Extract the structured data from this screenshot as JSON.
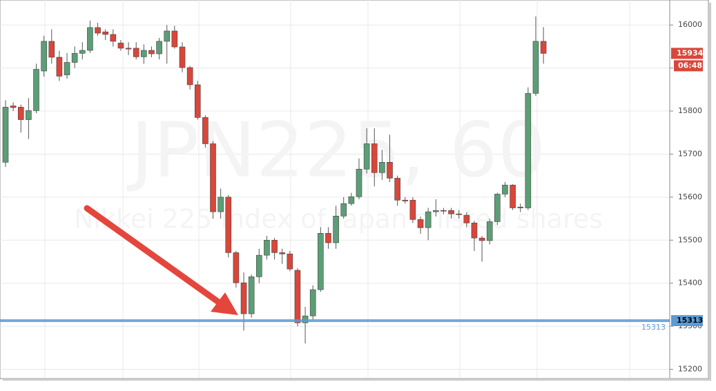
{
  "chart_data": {
    "type": "candlestick",
    "title": "JPN225, 60",
    "subtitle": "Nikkei 225 index of Japan's listed shares",
    "open": [
      15681,
      15812,
      15809,
      15780,
      15801,
      15893,
      15962,
      15925,
      15884,
      15913,
      15934,
      15941,
      15994,
      15984,
      15978,
      15958,
      15946,
      15946,
      15926,
      15941,
      15933,
      15962,
      15986,
      15949,
      15901,
      15861,
      15785,
      15724,
      15566,
      15600,
      15471,
      15401,
      15329,
      15415,
      15465,
      15500,
      15471,
      15468,
      15430,
      15308,
      15324,
      15385,
      15516,
      15494,
      15556,
      15585,
      15601,
      15665,
      15724,
      15657,
      15681,
      15644,
      15593,
      15593,
      15548,
      15529,
      15566,
      15569,
      15569,
      15561,
      15558,
      15540,
      15505,
      15499,
      15543,
      15607,
      15628,
      15577,
      15575,
      15841,
      15962
    ],
    "high": [
      15825,
      15820,
      15815,
      15830,
      15910,
      15975,
      15990,
      15940,
      15935,
      15950,
      15960,
      16010,
      16005,
      15990,
      15990,
      15965,
      15960,
      15960,
      15955,
      15950,
      15970,
      16000,
      15998,
      15960,
      15905,
      15870,
      15790,
      15730,
      15620,
      15605,
      15475,
      15425,
      15420,
      15480,
      15510,
      15505,
      15480,
      15475,
      15435,
      15345,
      15395,
      15530,
      15530,
      15580,
      15600,
      15610,
      15690,
      15760,
      15760,
      15710,
      15745,
      15650,
      15600,
      15600,
      15555,
      15575,
      15595,
      15575,
      15575,
      15570,
      15565,
      15545,
      15510,
      15550,
      15610,
      15635,
      15630,
      15585,
      15855,
      16020,
      15995
    ],
    "low": [
      15670,
      15800,
      15750,
      15735,
      15795,
      15880,
      15910,
      15870,
      15875,
      15900,
      15920,
      15935,
      15975,
      15965,
      15950,
      15940,
      15930,
      15920,
      15910,
      15925,
      15920,
      15910,
      15945,
      15890,
      15850,
      15780,
      15715,
      15550,
      15550,
      15460,
      15390,
      15290,
      15320,
      15400,
      15455,
      15455,
      15445,
      15428,
      15300,
      15260,
      15315,
      15380,
      15480,
      15480,
      15550,
      15580,
      15595,
      15655,
      15625,
      15640,
      15635,
      15580,
      15585,
      15540,
      15515,
      15500,
      15555,
      15560,
      15550,
      15550,
      15530,
      15475,
      15450,
      15490,
      15535,
      15600,
      15570,
      15565,
      15570,
      15835,
      15910
    ],
    "close": [
      15809,
      15808,
      15780,
      15801,
      15897,
      15962,
      15925,
      15881,
      15913,
      15934,
      15941,
      15994,
      15981,
      15978,
      15962,
      15946,
      15944,
      15926,
      15941,
      15933,
      15962,
      15986,
      15949,
      15901,
      15861,
      15785,
      15724,
      15566,
      15600,
      15471,
      15401,
      15329,
      15415,
      15465,
      15500,
      15471,
      15468,
      15433,
      15308,
      15324,
      15385,
      15516,
      15494,
      15556,
      15585,
      15601,
      15665,
      15724,
      15657,
      15681,
      15644,
      15593,
      15591,
      15548,
      15529,
      15566,
      15569,
      15568,
      15561,
      15560,
      15540,
      15505,
      15499,
      15543,
      15607,
      15628,
      15575,
      15575,
      15841,
      15962,
      15934
    ],
    "up_color": "#5c9e76",
    "down_color": "#d9463a",
    "ylim": [
      15180,
      16058
    ],
    "yticks": [
      15200,
      15300,
      15400,
      15500,
      15600,
      15700,
      15800,
      15900,
      16000
    ],
    "grid": true,
    "hline": 15313,
    "hline_color": "#5b9bd5",
    "last_price": 15934,
    "countdown": "06:48"
  }
}
